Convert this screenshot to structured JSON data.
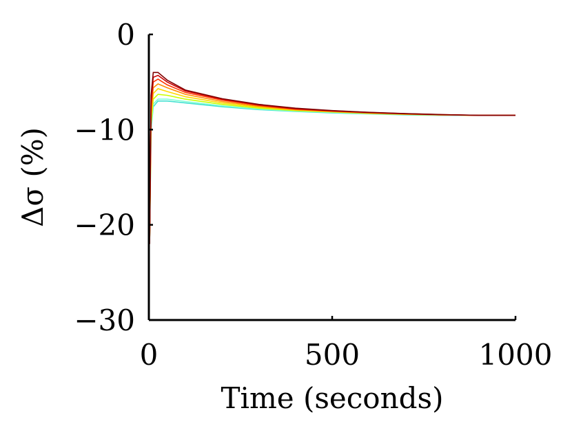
{
  "chart_data": {
    "type": "line",
    "title": "",
    "xlabel": "Time (seconds)",
    "ylabel": "Δσ (%)",
    "xlim": [
      0,
      1000
    ],
    "ylim": [
      -30,
      0
    ],
    "x_ticks": [
      {
        "value": 0,
        "label": "0"
      },
      {
        "value": 500,
        "label": "500"
      },
      {
        "value": 1000,
        "label": "1000"
      }
    ],
    "y_ticks": [
      {
        "value": 0,
        "label": "0"
      },
      {
        "value": -10,
        "label": "−10"
      },
      {
        "value": -20,
        "label": "−20"
      },
      {
        "value": -30,
        "label": "−30"
      }
    ],
    "grid": false,
    "legend": "none",
    "colormap": "jet (many curves, cyan to dark red)",
    "series": [
      {
        "color": "#40e0d0",
        "points": [
          [
            0,
            0
          ],
          [
            2,
            -22
          ],
          [
            6,
            -10
          ],
          [
            12,
            -7.6
          ],
          [
            25,
            -7.0
          ],
          [
            50,
            -7.0
          ],
          [
            100,
            -7.2
          ],
          [
            200,
            -7.6
          ],
          [
            300,
            -7.9
          ],
          [
            400,
            -8.1
          ],
          [
            500,
            -8.25
          ],
          [
            600,
            -8.35
          ],
          [
            700,
            -8.45
          ],
          [
            800,
            -8.5
          ],
          [
            900,
            -8.5
          ],
          [
            1000,
            -8.5
          ]
        ]
      },
      {
        "color": "#7fffd4",
        "points": [
          [
            0,
            0
          ],
          [
            2,
            -22
          ],
          [
            6,
            -9.8
          ],
          [
            12,
            -7.3
          ],
          [
            25,
            -6.8
          ],
          [
            50,
            -6.8
          ],
          [
            100,
            -7.05
          ],
          [
            200,
            -7.5
          ],
          [
            300,
            -7.85
          ],
          [
            400,
            -8.05
          ],
          [
            500,
            -8.2
          ],
          [
            600,
            -8.32
          ],
          [
            700,
            -8.42
          ],
          [
            800,
            -8.48
          ],
          [
            900,
            -8.5
          ],
          [
            1000,
            -8.5
          ]
        ]
      },
      {
        "color": "#c8ff00",
        "points": [
          [
            0,
            0
          ],
          [
            2,
            -22
          ],
          [
            6,
            -9.4
          ],
          [
            12,
            -6.8
          ],
          [
            25,
            -6.3
          ],
          [
            50,
            -6.4
          ],
          [
            100,
            -6.8
          ],
          [
            200,
            -7.35
          ],
          [
            300,
            -7.75
          ],
          [
            400,
            -8.0
          ],
          [
            500,
            -8.15
          ],
          [
            600,
            -8.3
          ],
          [
            700,
            -8.4
          ],
          [
            800,
            -8.46
          ],
          [
            900,
            -8.5
          ],
          [
            1000,
            -8.5
          ]
        ]
      },
      {
        "color": "#ffd700",
        "points": [
          [
            0,
            0
          ],
          [
            2,
            -22
          ],
          [
            6,
            -8.9
          ],
          [
            12,
            -6.2
          ],
          [
            25,
            -5.7
          ],
          [
            50,
            -6.0
          ],
          [
            100,
            -6.55
          ],
          [
            200,
            -7.2
          ],
          [
            300,
            -7.65
          ],
          [
            400,
            -7.95
          ],
          [
            500,
            -8.12
          ],
          [
            600,
            -8.28
          ],
          [
            700,
            -8.38
          ],
          [
            800,
            -8.45
          ],
          [
            900,
            -8.5
          ],
          [
            1000,
            -8.5
          ]
        ]
      },
      {
        "color": "#ff8c00",
        "points": [
          [
            0,
            0
          ],
          [
            2,
            -22
          ],
          [
            6,
            -8.3
          ],
          [
            12,
            -5.6
          ],
          [
            25,
            -5.2
          ],
          [
            50,
            -5.6
          ],
          [
            100,
            -6.3
          ],
          [
            200,
            -7.05
          ],
          [
            300,
            -7.55
          ],
          [
            400,
            -7.9
          ],
          [
            500,
            -8.1
          ],
          [
            600,
            -8.25
          ],
          [
            700,
            -8.37
          ],
          [
            800,
            -8.45
          ],
          [
            900,
            -8.5
          ],
          [
            1000,
            -8.5
          ]
        ]
      },
      {
        "color": "#ff3300",
        "points": [
          [
            0,
            0
          ],
          [
            2,
            -22
          ],
          [
            6,
            -7.6
          ],
          [
            12,
            -5.0
          ],
          [
            25,
            -4.7
          ],
          [
            50,
            -5.3
          ],
          [
            100,
            -6.1
          ],
          [
            200,
            -6.9
          ],
          [
            300,
            -7.45
          ],
          [
            400,
            -7.85
          ],
          [
            500,
            -8.05
          ],
          [
            600,
            -8.22
          ],
          [
            700,
            -8.35
          ],
          [
            800,
            -8.44
          ],
          [
            900,
            -8.5
          ],
          [
            1000,
            -8.5
          ]
        ]
      },
      {
        "color": "#cc0000",
        "points": [
          [
            0,
            0
          ],
          [
            2,
            -22
          ],
          [
            6,
            -7.0
          ],
          [
            12,
            -4.5
          ],
          [
            25,
            -4.3
          ],
          [
            50,
            -5.0
          ],
          [
            100,
            -5.95
          ],
          [
            200,
            -6.8
          ],
          [
            300,
            -7.4
          ],
          [
            400,
            -7.8
          ],
          [
            500,
            -8.02
          ],
          [
            600,
            -8.2
          ],
          [
            700,
            -8.33
          ],
          [
            800,
            -8.43
          ],
          [
            900,
            -8.5
          ],
          [
            1000,
            -8.5
          ]
        ]
      },
      {
        "color": "#800000",
        "points": [
          [
            0,
            0
          ],
          [
            2,
            -22
          ],
          [
            6,
            -6.4
          ],
          [
            12,
            -4.0
          ],
          [
            25,
            -4.0
          ],
          [
            50,
            -4.8
          ],
          [
            100,
            -5.85
          ],
          [
            200,
            -6.75
          ],
          [
            300,
            -7.35
          ],
          [
            400,
            -7.75
          ],
          [
            500,
            -8.0
          ],
          [
            600,
            -8.18
          ],
          [
            700,
            -8.32
          ],
          [
            800,
            -8.42
          ],
          [
            900,
            -8.5
          ],
          [
            1000,
            -8.5
          ]
        ]
      }
    ]
  }
}
